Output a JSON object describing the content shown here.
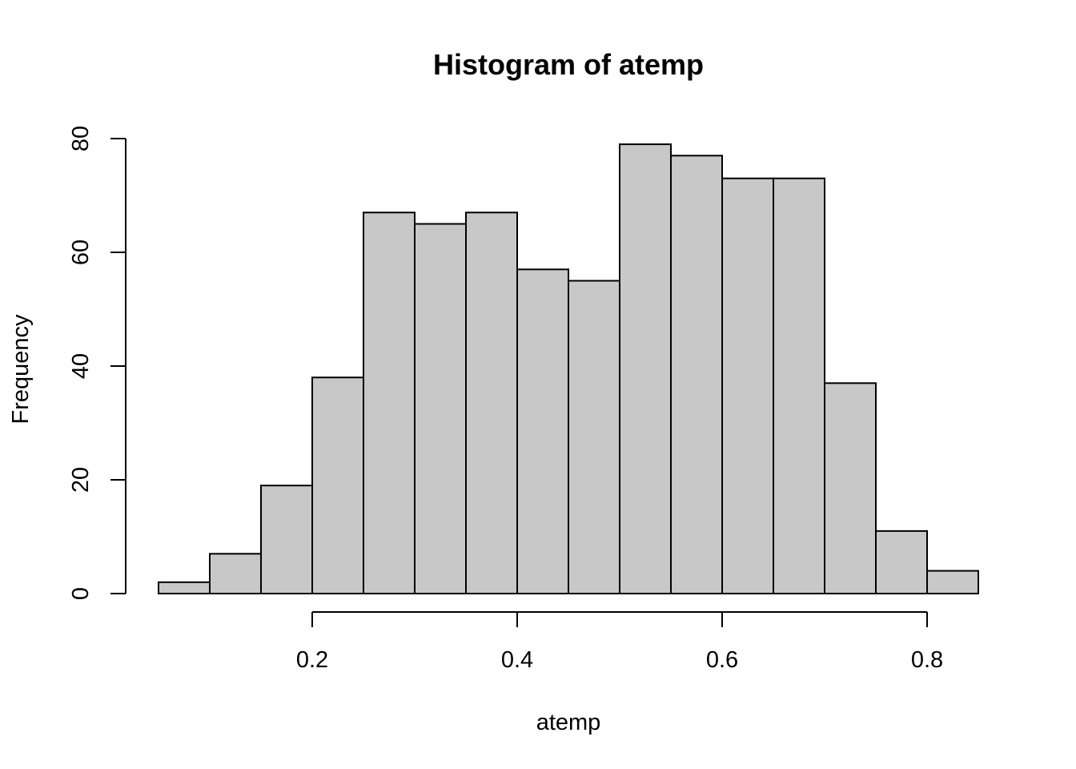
{
  "chart_data": {
    "type": "bar",
    "title": "Histogram of atemp",
    "xlabel": "atemp",
    "ylabel": "Frequency",
    "bin_edges": [
      0.05,
      0.1,
      0.15,
      0.2,
      0.25,
      0.3,
      0.35,
      0.4,
      0.45,
      0.5,
      0.55,
      0.6,
      0.65,
      0.7,
      0.75,
      0.8,
      0.85
    ],
    "values": [
      2,
      7,
      19,
      38,
      67,
      65,
      67,
      57,
      55,
      79,
      77,
      73,
      73,
      37,
      11,
      4
    ],
    "xlim": [
      0.05,
      0.85
    ],
    "ylim": [
      0,
      80
    ],
    "x_ticks": [
      0.2,
      0.4,
      0.6,
      0.8
    ],
    "x_tick_labels": [
      "0.2",
      "0.4",
      "0.6",
      "0.8"
    ],
    "y_ticks": [
      0,
      20,
      40,
      60,
      80
    ],
    "y_tick_labels": [
      "0",
      "20",
      "40",
      "60",
      "80"
    ],
    "grid": false,
    "legend": "none",
    "colors": {
      "bar_fill": "#c8c8c8",
      "bar_stroke": "#000000"
    }
  }
}
